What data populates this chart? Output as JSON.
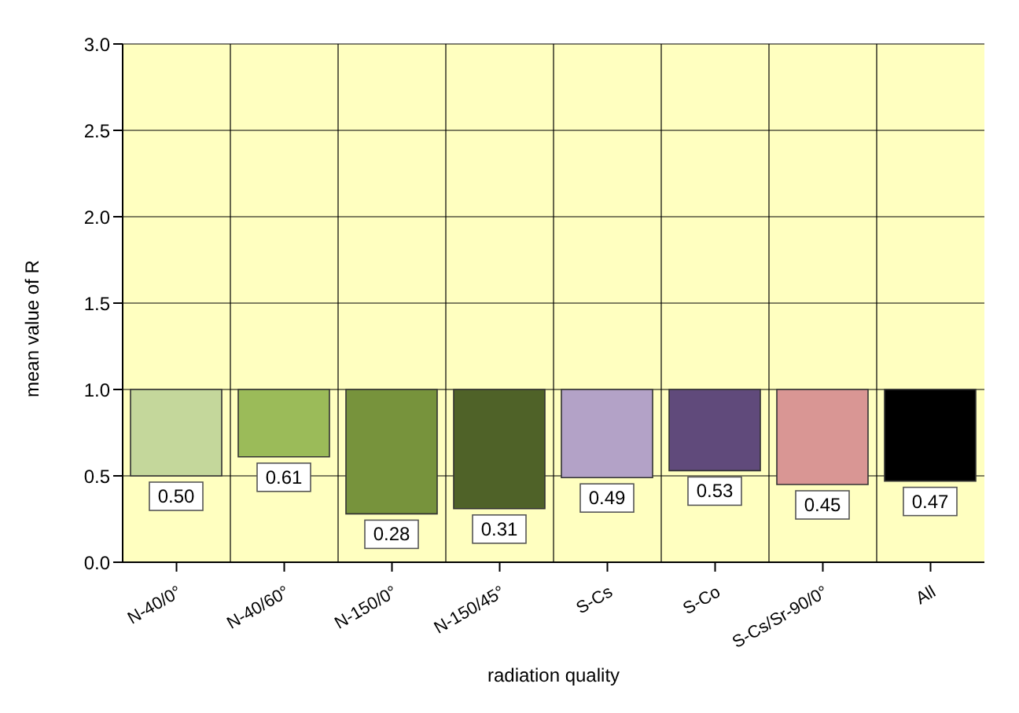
{
  "chart_data": {
    "type": "bar",
    "xlabel": "radiation quality",
    "ylabel": "mean value of  R",
    "categories": [
      "N-40/0°",
      "N-40/60°",
      "N-150/0°",
      "N-150/45°",
      "S-Cs",
      "S-Co",
      "S-Cs/Sr-90/0°",
      "All"
    ],
    "base": [
      1,
      1,
      1,
      1,
      1,
      1,
      1,
      1
    ],
    "values": [
      -0.5,
      -0.39,
      -0.72,
      -0.69,
      -0.51,
      -0.47,
      -0.55,
      -0.53
    ],
    "value_labels": [
      "0.50",
      "0.61",
      "0.28",
      "0.31",
      "0.49",
      "0.53",
      "0.45",
      "0.47"
    ],
    "colors": [
      "#c4d79b",
      "#9bbb59",
      "#77933c",
      "#4f6228",
      "#b3a2c7",
      "#604a7b",
      "#d99694",
      "#000000"
    ],
    "ylim": [
      0,
      3
    ],
    "yticks": [
      {
        "value": 0,
        "label": "0.0"
      },
      {
        "value": 0.5,
        "label": "0.5"
      },
      {
        "value": 1,
        "label": "1.0"
      },
      {
        "value": 1.5,
        "label": "1.5"
      },
      {
        "value": 2,
        "label": "2.0"
      },
      {
        "value": 2.5,
        "label": "2.5"
      },
      {
        "value": 3,
        "label": "3.0"
      }
    ],
    "grid": true
  }
}
